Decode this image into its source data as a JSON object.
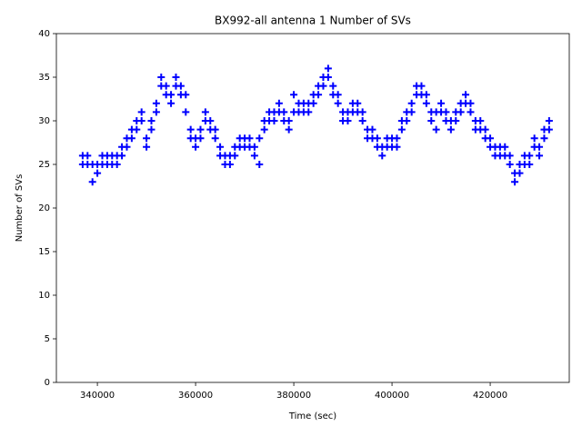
{
  "chart_data": {
    "type": "scatter",
    "title": "BX992-all antenna 1 Number of SVs",
    "x_label": "Time (sec)",
    "y_label": "Number of SVs",
    "xlim": [
      331650,
      436100
    ],
    "ylim": [
      0,
      40
    ],
    "xticks": [
      340000,
      360000,
      380000,
      400000,
      420000
    ],
    "yticks": [
      0,
      5,
      10,
      15,
      20,
      25,
      30,
      35,
      40
    ],
    "marker": "+",
    "series": [
      {
        "color": "#0000ff",
        "x": [
          337000,
          337000,
          338000,
          338000,
          339000,
          339000,
          340000,
          340000,
          341000,
          341000,
          342000,
          342000,
          343000,
          343000,
          344000,
          344000,
          345000,
          345000,
          346000,
          346000,
          347000,
          347000,
          348000,
          348000,
          349000,
          349000,
          350000,
          350000,
          351000,
          351000,
          352000,
          352000,
          353000,
          353000,
          354000,
          354000,
          355000,
          355000,
          356000,
          356000,
          357000,
          357000,
          358000,
          358000,
          359000,
          359000,
          360000,
          360000,
          361000,
          361000,
          362000,
          362000,
          363000,
          363000,
          364000,
          364000,
          365000,
          365000,
          366000,
          366000,
          367000,
          367000,
          368000,
          368000,
          369000,
          369000,
          370000,
          370000,
          371000,
          371000,
          372000,
          372000,
          373000,
          373000,
          374000,
          374000,
          375000,
          375000,
          376000,
          376000,
          377000,
          377000,
          378000,
          378000,
          379000,
          379000,
          380000,
          380000,
          381000,
          381000,
          382000,
          382000,
          383000,
          383000,
          384000,
          384000,
          385000,
          385000,
          386000,
          386000,
          387000,
          387000,
          388000,
          388000,
          389000,
          389000,
          390000,
          390000,
          391000,
          391000,
          392000,
          392000,
          393000,
          393000,
          394000,
          394000,
          395000,
          395000,
          396000,
          396000,
          397000,
          397000,
          398000,
          398000,
          399000,
          399000,
          400000,
          400000,
          401000,
          401000,
          402000,
          402000,
          403000,
          403000,
          404000,
          404000,
          405000,
          405000,
          406000,
          406000,
          407000,
          407000,
          408000,
          408000,
          409000,
          409000,
          410000,
          410000,
          411000,
          411000,
          412000,
          412000,
          413000,
          413000,
          414000,
          414000,
          415000,
          415000,
          416000,
          416000,
          417000,
          417000,
          418000,
          418000,
          419000,
          419000,
          420000,
          420000,
          421000,
          421000,
          422000,
          422000,
          423000,
          423000,
          424000,
          424000,
          425000,
          425000,
          426000,
          426000,
          427000,
          427000,
          428000,
          428000,
          429000,
          429000,
          430000,
          430000,
          431000,
          431000,
          432000,
          432000
        ],
        "values": [
          25,
          26,
          25,
          26,
          23,
          25,
          25,
          24,
          25,
          26,
          25,
          26,
          25,
          26,
          25,
          26,
          26,
          27,
          27,
          28,
          28,
          29,
          29,
          30,
          30,
          31,
          28,
          27,
          29,
          30,
          31,
          32,
          34,
          35,
          33,
          34,
          32,
          33,
          34,
          35,
          33,
          34,
          33,
          31,
          28,
          29,
          27,
          28,
          28,
          29,
          30,
          31,
          30,
          29,
          29,
          28,
          27,
          26,
          26,
          25,
          25,
          26,
          27,
          26,
          27,
          28,
          27,
          28,
          28,
          27,
          27,
          26,
          25,
          28,
          29,
          30,
          30,
          31,
          30,
          31,
          31,
          32,
          31,
          30,
          30,
          29,
          31,
          33,
          31,
          32,
          31,
          32,
          32,
          31,
          32,
          33,
          33,
          34,
          34,
          35,
          36,
          35,
          34,
          33,
          33,
          32,
          31,
          30,
          31,
          30,
          31,
          32,
          31,
          32,
          31,
          30,
          29,
          28,
          28,
          29,
          27,
          28,
          26,
          27,
          28,
          27,
          28,
          27,
          28,
          27,
          29,
          30,
          31,
          30,
          31,
          32,
          34,
          33,
          34,
          33,
          33,
          32,
          31,
          30,
          31,
          29,
          31,
          32,
          31,
          30,
          30,
          29,
          31,
          30,
          32,
          31,
          32,
          33,
          31,
          32,
          30,
          29,
          30,
          29,
          29,
          28,
          27,
          28,
          27,
          26,
          27,
          26,
          27,
          26,
          25,
          26,
          24,
          23,
          25,
          24,
          26,
          25,
          26,
          25,
          27,
          28,
          26,
          27,
          28,
          29,
          30,
          29
        ]
      }
    ]
  }
}
